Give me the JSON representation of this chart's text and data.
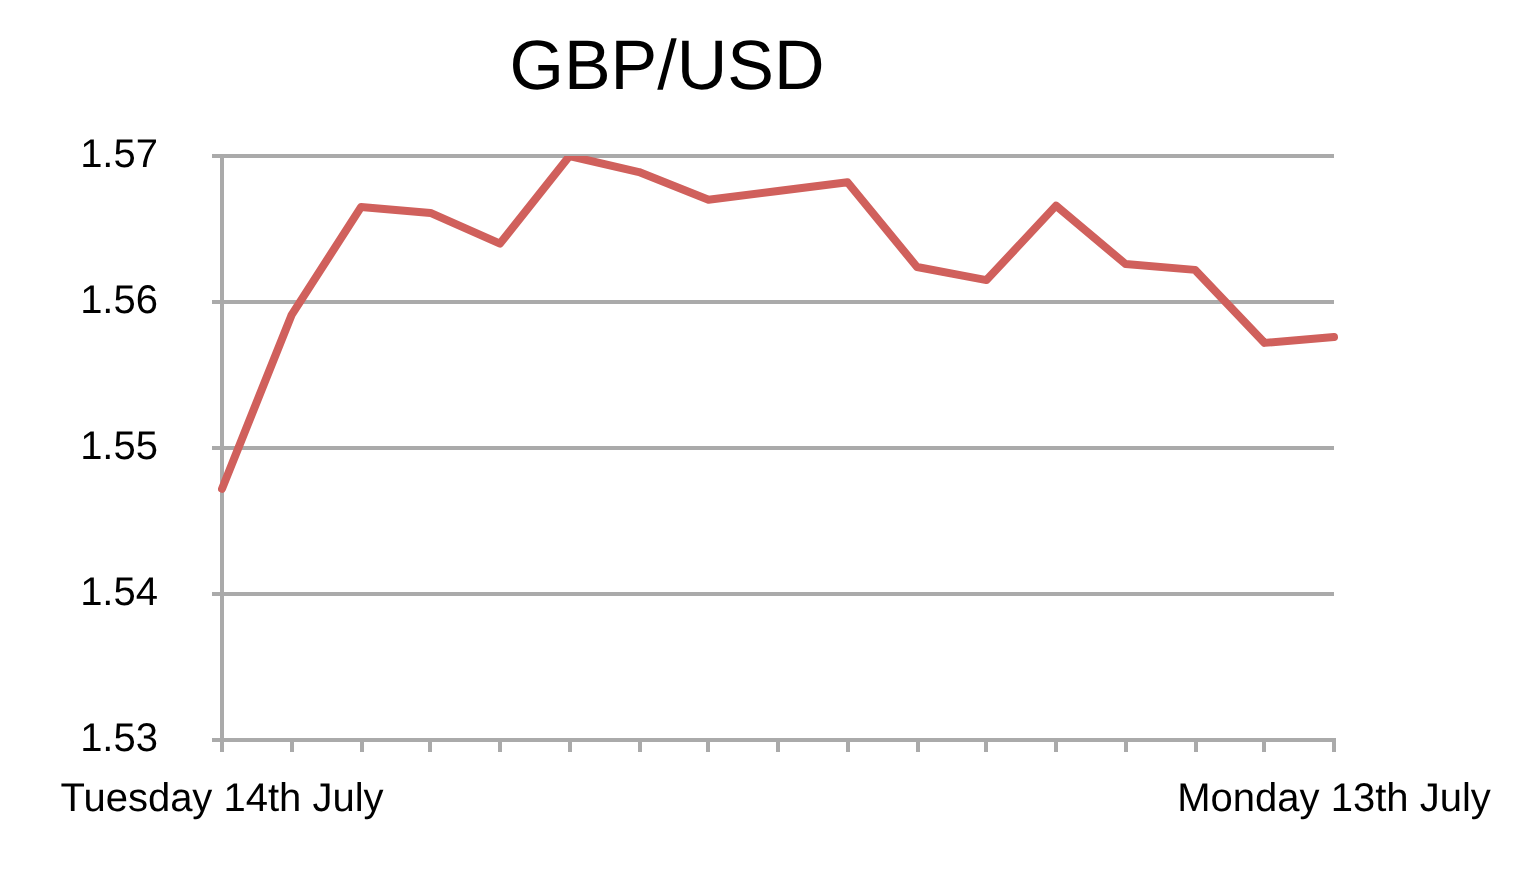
{
  "chart_data": {
    "type": "line",
    "title": "GBP/USD",
    "categories": [
      "Tuesday 14th July",
      null,
      null,
      null,
      null,
      null,
      null,
      null,
      null,
      null,
      null,
      null,
      null,
      null,
      null,
      null,
      "Monday 13th July"
    ],
    "series": [
      {
        "color": "#d0605c",
        "values": [
          1.5472,
          1.5591,
          1.5665,
          1.5661,
          1.564,
          1.57,
          1.5689,
          1.567,
          1.5676,
          1.5682,
          1.5624,
          1.5615,
          1.5666,
          1.5626,
          1.5622,
          1.5572,
          1.5576
        ]
      }
    ],
    "ylim": [
      1.53,
      1.57
    ],
    "yticks": [
      1.53,
      1.54,
      1.55,
      1.56,
      1.57
    ],
    "grid": "y",
    "marker": "none"
  }
}
